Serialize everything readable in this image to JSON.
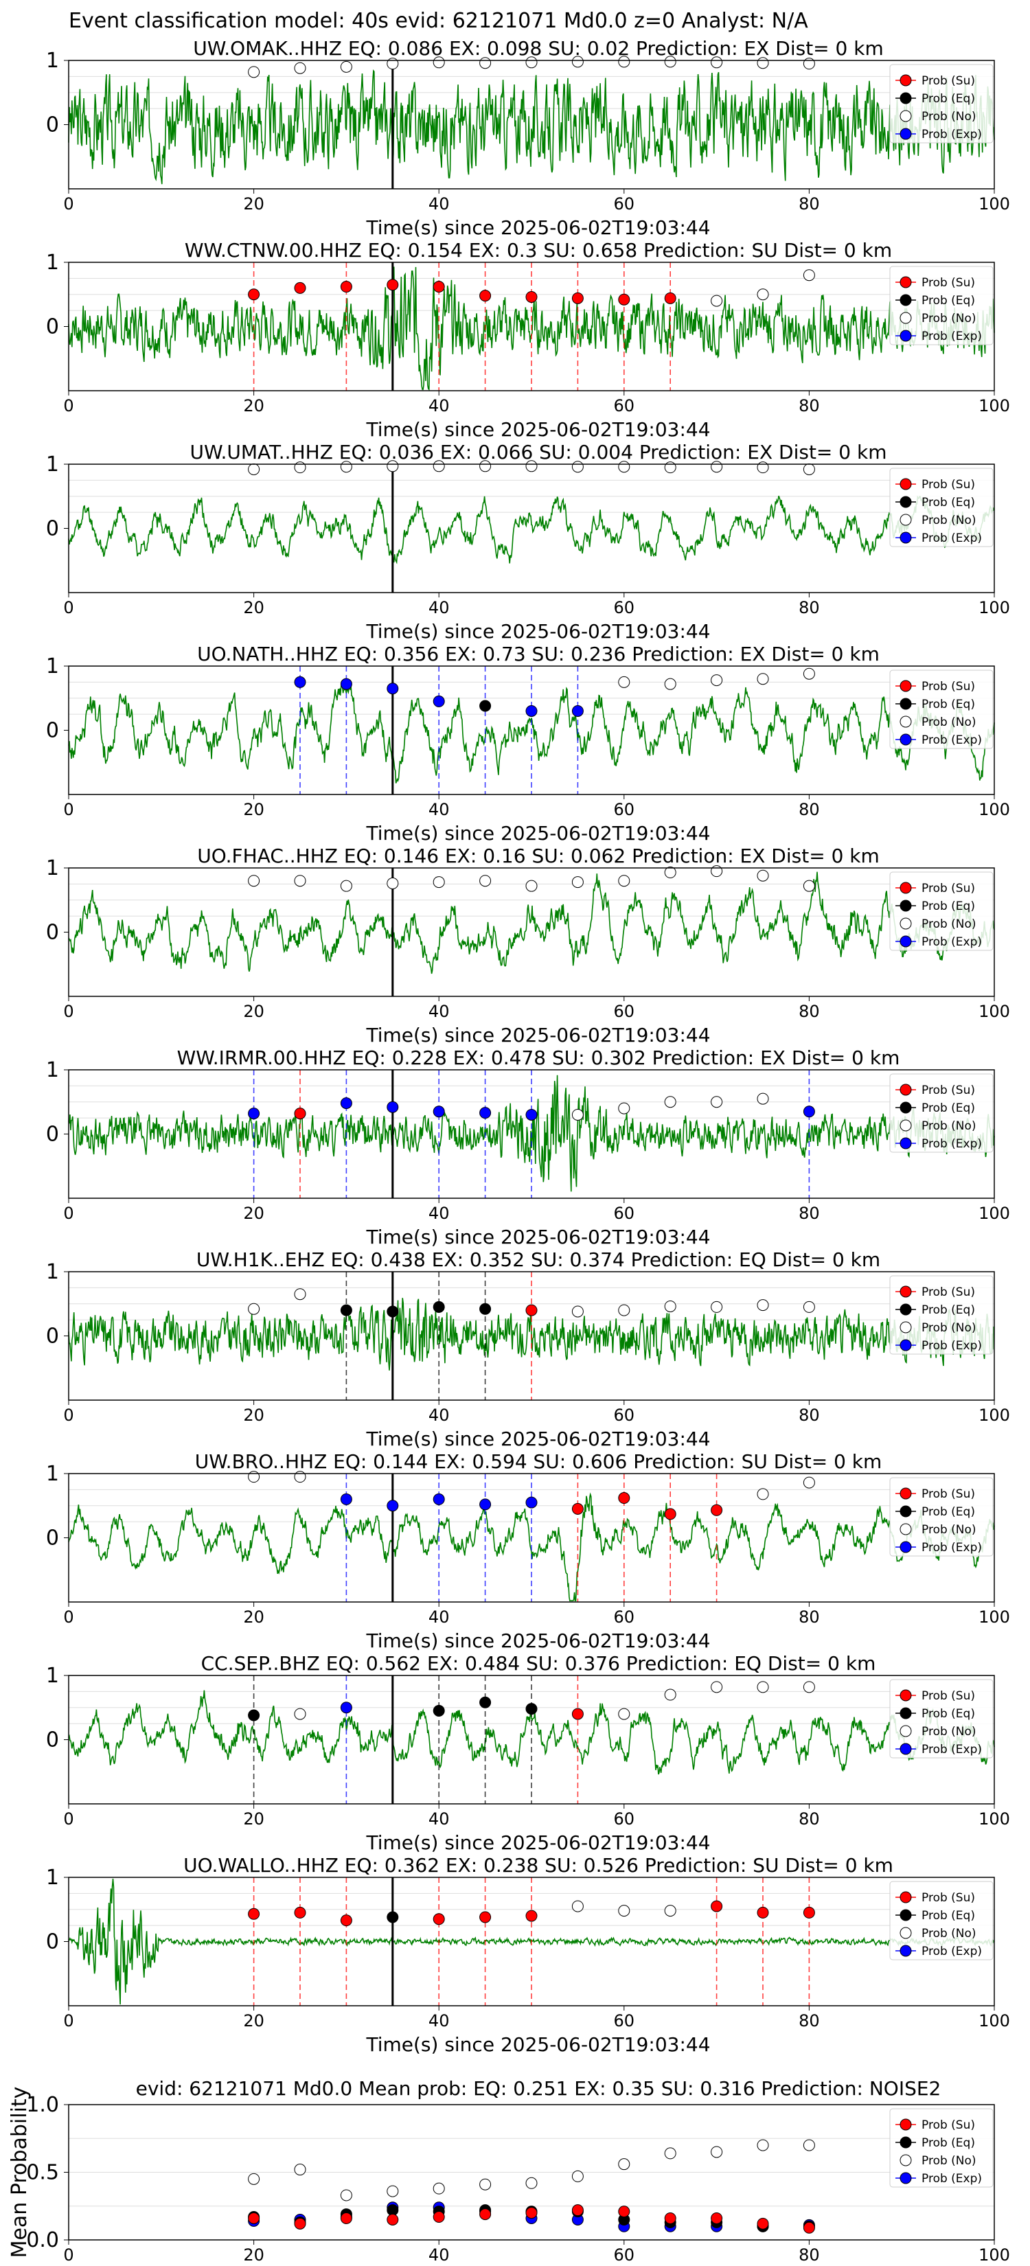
{
  "figure": {
    "suptitle": "Event classification model: 40s evid: 62121071 Md0.0 z=0 Analyst: N/A",
    "xlabel": "Time(s) since 2025-06-02T19:03:44",
    "legend": [
      "Prob (Su)",
      "Prob (Eq)",
      "Prob (No)",
      "Prob (Exp)"
    ],
    "colors": {
      "su": "#ff0000",
      "eq": "#000000",
      "no": "#ffffff",
      "exp": "#0000ff",
      "trace": "#008000",
      "grid": "#dddddd"
    }
  },
  "chart_data": [
    {
      "type": "scatter",
      "title": "UW.OMAK..HHZ   EQ: 0.086  EX: 0.098  SU: 0.02   Prediction: EX    Dist= 0 km",
      "xlim": [
        0,
        100
      ],
      "ylim": [
        -1,
        1
      ],
      "xticks": [
        0,
        20,
        40,
        60,
        80,
        100
      ],
      "yticks": [
        0,
        1
      ],
      "pick_time": 35,
      "trace": {
        "amp": 0.55,
        "seed": 3,
        "style": "noisy",
        "burst": null
      },
      "series": [
        {
          "name": "Prob (No)",
          "x": [
            20,
            25,
            30,
            35,
            40,
            45,
            50,
            55,
            60,
            65,
            70,
            75,
            80
          ],
          "y": [
            0.82,
            0.88,
            0.9,
            0.95,
            0.97,
            0.96,
            0.97,
            0.98,
            0.98,
            0.98,
            0.97,
            0.96,
            0.95
          ]
        }
      ],
      "vlines": []
    },
    {
      "type": "scatter",
      "title": "WW.CTNW.00.HHZ   EQ: 0.154  EX: 0.3  SU: 0.658   Prediction: SU    Dist= 0 km",
      "xlim": [
        0,
        100
      ],
      "ylim": [
        -1,
        1
      ],
      "xticks": [
        0,
        20,
        40,
        60,
        80,
        100
      ],
      "yticks": [
        0,
        1
      ],
      "pick_time": 35,
      "trace": {
        "amp": 0.35,
        "seed": 7,
        "style": "noisy",
        "burst": [
          30,
          45,
          0.9
        ]
      },
      "series": [
        {
          "name": "Prob (Su)",
          "x": [
            20,
            25,
            30,
            35,
            40,
            45,
            50,
            55,
            60,
            65
          ],
          "y": [
            0.5,
            0.6,
            0.62,
            0.65,
            0.62,
            0.48,
            0.46,
            0.44,
            0.42,
            0.44
          ]
        },
        {
          "name": "Prob (No)",
          "x": [
            70,
            75,
            80
          ],
          "y": [
            0.4,
            0.5,
            0.8
          ]
        }
      ],
      "vlines": [
        {
          "x": 20,
          "c": "su"
        },
        {
          "x": 30,
          "c": "su"
        },
        {
          "x": 35,
          "c": "su"
        },
        {
          "x": 40,
          "c": "su"
        },
        {
          "x": 45,
          "c": "su"
        },
        {
          "x": 50,
          "c": "su"
        },
        {
          "x": 55,
          "c": "su"
        },
        {
          "x": 60,
          "c": "su"
        },
        {
          "x": 65,
          "c": "su"
        }
      ]
    },
    {
      "type": "scatter",
      "title": "UW.UMAT..HHZ   EQ: 0.036  EX: 0.066  SU: 0.004   Prediction: EX    Dist= 0 km",
      "xlim": [
        0,
        100
      ],
      "ylim": [
        -1,
        1
      ],
      "xticks": [
        0,
        20,
        40,
        60,
        80,
        100
      ],
      "yticks": [
        0,
        1
      ],
      "pick_time": 35,
      "trace": {
        "amp": 0.4,
        "seed": 11,
        "style": "smooth",
        "burst": null
      },
      "series": [
        {
          "name": "Prob (No)",
          "x": [
            20,
            25,
            30,
            35,
            40,
            45,
            50,
            55,
            60,
            65,
            70,
            75,
            80
          ],
          "y": [
            0.92,
            0.95,
            0.96,
            0.97,
            0.97,
            0.97,
            0.97,
            0.96,
            0.96,
            0.95,
            0.96,
            0.95,
            0.92
          ]
        }
      ],
      "vlines": []
    },
    {
      "type": "scatter",
      "title": "UO.NATH..HHZ   EQ: 0.356  EX: 0.73  SU: 0.236   Prediction: EX    Dist= 0 km",
      "xlim": [
        0,
        100
      ],
      "ylim": [
        -1,
        1
      ],
      "xticks": [
        0,
        20,
        40,
        60,
        80,
        100
      ],
      "yticks": [
        0,
        1
      ],
      "pick_time": 35,
      "trace": {
        "amp": 0.55,
        "seed": 17,
        "style": "smooth",
        "burst": null
      },
      "series": [
        {
          "name": "Prob (Exp)",
          "x": [
            25,
            30,
            35,
            40,
            50,
            55
          ],
          "y": [
            0.75,
            0.72,
            0.65,
            0.45,
            0.3,
            0.3
          ]
        },
        {
          "name": "Prob (Eq)",
          "x": [
            45
          ],
          "y": [
            0.38
          ]
        },
        {
          "name": "Prob (No)",
          "x": [
            60,
            65,
            70,
            75,
            80
          ],
          "y": [
            0.75,
            0.72,
            0.78,
            0.8,
            0.88
          ]
        }
      ],
      "vlines": [
        {
          "x": 25,
          "c": "exp"
        },
        {
          "x": 30,
          "c": "exp"
        },
        {
          "x": 35,
          "c": "exp"
        },
        {
          "x": 40,
          "c": "exp"
        },
        {
          "x": 45,
          "c": "exp"
        },
        {
          "x": 50,
          "c": "exp"
        },
        {
          "x": 55,
          "c": "exp"
        }
      ]
    },
    {
      "type": "scatter",
      "title": "UO.FHAC..HHZ   EQ: 0.146  EX: 0.16  SU: 0.062   Prediction: EX    Dist= 0 km",
      "xlim": [
        0,
        100
      ],
      "ylim": [
        -1,
        1
      ],
      "xticks": [
        0,
        20,
        40,
        60,
        80,
        100
      ],
      "yticks": [
        0,
        1
      ],
      "pick_time": 35,
      "trace": {
        "amp": 0.55,
        "seed": 23,
        "style": "smooth",
        "burst": null
      },
      "series": [
        {
          "name": "Prob (No)",
          "x": [
            20,
            25,
            30,
            35,
            40,
            45,
            50,
            55,
            60,
            65,
            70,
            75,
            80
          ],
          "y": [
            0.8,
            0.8,
            0.72,
            0.76,
            0.78,
            0.8,
            0.72,
            0.78,
            0.8,
            0.93,
            0.95,
            0.88,
            0.72
          ]
        }
      ],
      "vlines": []
    },
    {
      "type": "scatter",
      "title": "WW.IRMR.00.HHZ   EQ: 0.228  EX: 0.478  SU: 0.302   Prediction: EX    Dist= 0 km",
      "xlim": [
        0,
        100
      ],
      "ylim": [
        -1,
        1
      ],
      "xticks": [
        0,
        20,
        40,
        60,
        80,
        100
      ],
      "yticks": [
        0,
        1
      ],
      "pick_time": 35,
      "trace": {
        "amp": 0.25,
        "seed": 29,
        "style": "noisy",
        "burst": [
          45,
          60,
          0.8
        ]
      },
      "series": [
        {
          "name": "Prob (Exp)",
          "x": [
            20,
            30,
            35,
            40,
            45,
            50,
            80
          ],
          "y": [
            0.32,
            0.48,
            0.42,
            0.35,
            0.33,
            0.3,
            0.35
          ]
        },
        {
          "name": "Prob (Su)",
          "x": [
            25
          ],
          "y": [
            0.32
          ]
        },
        {
          "name": "Prob (No)",
          "x": [
            55,
            60,
            65,
            70,
            75
          ],
          "y": [
            0.3,
            0.4,
            0.5,
            0.5,
            0.55
          ]
        }
      ],
      "vlines": [
        {
          "x": 20,
          "c": "exp"
        },
        {
          "x": 25,
          "c": "su"
        },
        {
          "x": 30,
          "c": "exp"
        },
        {
          "x": 35,
          "c": "exp"
        },
        {
          "x": 40,
          "c": "exp"
        },
        {
          "x": 45,
          "c": "exp"
        },
        {
          "x": 50,
          "c": "exp"
        },
        {
          "x": 80,
          "c": "exp"
        }
      ]
    },
    {
      "type": "scatter",
      "title": "UW.H1K..EHZ   EQ: 0.438  EX: 0.352  SU: 0.374   Prediction: EQ    Dist= 0 km",
      "xlim": [
        0,
        100
      ],
      "ylim": [
        -1,
        1
      ],
      "xticks": [
        0,
        20,
        40,
        60,
        80,
        100
      ],
      "yticks": [
        0,
        1
      ],
      "pick_time": 35,
      "trace": {
        "amp": 0.3,
        "seed": 31,
        "style": "noisy",
        "burst": [
          30,
          45,
          0.6
        ]
      },
      "series": [
        {
          "name": "Prob (No)",
          "x": [
            20,
            25,
            55,
            60,
            65,
            70,
            75,
            80
          ],
          "y": [
            0.42,
            0.65,
            0.38,
            0.4,
            0.46,
            0.45,
            0.48,
            0.45
          ]
        },
        {
          "name": "Prob (Eq)",
          "x": [
            30,
            35,
            40,
            45
          ],
          "y": [
            0.4,
            0.38,
            0.45,
            0.42
          ]
        },
        {
          "name": "Prob (Su)",
          "x": [
            50
          ],
          "y": [
            0.4
          ]
        }
      ],
      "vlines": [
        {
          "x": 30,
          "c": "eq"
        },
        {
          "x": 35,
          "c": "eq"
        },
        {
          "x": 40,
          "c": "eq"
        },
        {
          "x": 45,
          "c": "eq"
        },
        {
          "x": 50,
          "c": "su"
        }
      ]
    },
    {
      "type": "scatter",
      "title": "UW.BRO..HHZ   EQ: 0.144  EX: 0.594  SU: 0.606   Prediction: SU    Dist= 0 km",
      "xlim": [
        0,
        100
      ],
      "ylim": [
        -1,
        1
      ],
      "xticks": [
        0,
        20,
        40,
        60,
        80,
        100
      ],
      "yticks": [
        0,
        1
      ],
      "pick_time": 35,
      "trace": {
        "amp": 0.4,
        "seed": 37,
        "style": "smooth",
        "burst": [
          50,
          60,
          0.85
        ]
      },
      "series": [
        {
          "name": "Prob (No)",
          "x": [
            20,
            25,
            75,
            80
          ],
          "y": [
            0.95,
            0.95,
            0.68,
            0.86
          ]
        },
        {
          "name": "Prob (Exp)",
          "x": [
            30,
            35,
            40,
            45,
            50
          ],
          "y": [
            0.6,
            0.5,
            0.6,
            0.52,
            0.55
          ]
        },
        {
          "name": "Prob (Su)",
          "x": [
            55,
            60,
            65,
            70
          ],
          "y": [
            0.45,
            0.62,
            0.37,
            0.43
          ]
        }
      ],
      "vlines": [
        {
          "x": 30,
          "c": "exp"
        },
        {
          "x": 35,
          "c": "exp"
        },
        {
          "x": 40,
          "c": "exp"
        },
        {
          "x": 45,
          "c": "exp"
        },
        {
          "x": 50,
          "c": "exp"
        },
        {
          "x": 55,
          "c": "su"
        },
        {
          "x": 60,
          "c": "su"
        },
        {
          "x": 65,
          "c": "su"
        },
        {
          "x": 70,
          "c": "su"
        }
      ]
    },
    {
      "type": "scatter",
      "title": "CC.SEP..BHZ   EQ: 0.562  EX: 0.484  SU: 0.376   Prediction: EQ    Dist= 0 km",
      "xlim": [
        0,
        100
      ],
      "ylim": [
        -1,
        1
      ],
      "xticks": [
        0,
        20,
        40,
        60,
        80,
        100
      ],
      "yticks": [
        0,
        1
      ],
      "pick_time": 35,
      "trace": {
        "amp": 0.45,
        "seed": 41,
        "style": "smooth",
        "burst": null
      },
      "series": [
        {
          "name": "Prob (Eq)",
          "x": [
            20,
            40,
            45,
            50
          ],
          "y": [
            0.38,
            0.45,
            0.58,
            0.48
          ]
        },
        {
          "name": "Prob (No)",
          "x": [
            25,
            60,
            65,
            70,
            75,
            80
          ],
          "y": [
            0.4,
            0.4,
            0.7,
            0.82,
            0.82,
            0.82
          ]
        },
        {
          "name": "Prob (Exp)",
          "x": [
            30
          ],
          "y": [
            0.5
          ]
        },
        {
          "name": "Prob (Su)",
          "x": [
            55
          ],
          "y": [
            0.4
          ]
        }
      ],
      "vlines": [
        {
          "x": 20,
          "c": "eq"
        },
        {
          "x": 30,
          "c": "exp"
        },
        {
          "x": 35,
          "c": "eq"
        },
        {
          "x": 40,
          "c": "eq"
        },
        {
          "x": 45,
          "c": "eq"
        },
        {
          "x": 50,
          "c": "eq"
        },
        {
          "x": 55,
          "c": "su"
        }
      ]
    },
    {
      "type": "scatter",
      "title": "UO.WALLO..HHZ   EQ: 0.362  EX: 0.238  SU: 0.526   Prediction: SU    Dist= 0 km",
      "xlim": [
        0,
        100
      ],
      "ylim": [
        -1,
        1
      ],
      "xticks": [
        0,
        20,
        40,
        60,
        80,
        100
      ],
      "yticks": [
        0,
        1
      ],
      "pick_time": 35,
      "trace": {
        "amp": 0.04,
        "seed": 43,
        "style": "noisy",
        "burst": [
          1,
          10,
          0.8
        ]
      },
      "series": [
        {
          "name": "Prob (Su)",
          "x": [
            20,
            25,
            30,
            40,
            45,
            50,
            70,
            75,
            80
          ],
          "y": [
            0.43,
            0.45,
            0.33,
            0.35,
            0.38,
            0.4,
            0.55,
            0.45,
            0.45
          ]
        },
        {
          "name": "Prob (Eq)",
          "x": [
            35
          ],
          "y": [
            0.38
          ]
        },
        {
          "name": "Prob (No)",
          "x": [
            55,
            60,
            65
          ],
          "y": [
            0.55,
            0.48,
            0.48
          ]
        }
      ],
      "vlines": [
        {
          "x": 20,
          "c": "su"
        },
        {
          "x": 25,
          "c": "su"
        },
        {
          "x": 30,
          "c": "su"
        },
        {
          "x": 35,
          "c": "su"
        },
        {
          "x": 40,
          "c": "su"
        },
        {
          "x": 45,
          "c": "su"
        },
        {
          "x": 50,
          "c": "su"
        },
        {
          "x": 70,
          "c": "su"
        },
        {
          "x": 75,
          "c": "su"
        },
        {
          "x": 80,
          "c": "su"
        }
      ]
    }
  ],
  "mean_chart": {
    "type": "scatter",
    "title": "evid: 62121071   Md0.0   Mean prob:   EQ: 0.251  EX: 0.35  SU: 0.316   Prediction: NOISE2",
    "ylabel": "Mean Probability",
    "xlim": [
      0,
      100
    ],
    "ylim": [
      0,
      1
    ],
    "xticks": [
      0,
      20,
      40,
      60,
      80,
      100
    ],
    "yticks": [
      0.0,
      0.5,
      1.0
    ],
    "x": [
      20,
      25,
      30,
      35,
      40,
      45,
      50,
      55,
      60,
      65,
      70,
      75,
      80
    ],
    "series": [
      {
        "name": "Prob (No)",
        "values": [
          0.45,
          0.52,
          0.33,
          0.36,
          0.38,
          0.41,
          0.42,
          0.47,
          0.56,
          0.64,
          0.65,
          0.7,
          0.7
        ]
      },
      {
        "name": "Prob (Exp)",
        "values": [
          0.14,
          0.15,
          0.17,
          0.24,
          0.24,
          0.21,
          0.16,
          0.15,
          0.1,
          0.1,
          0.1,
          0.1,
          0.11
        ]
      },
      {
        "name": "Prob (Eq)",
        "values": [
          0.17,
          0.13,
          0.19,
          0.22,
          0.21,
          0.22,
          0.21,
          0.21,
          0.15,
          0.13,
          0.13,
          0.1,
          0.1
        ]
      },
      {
        "name": "Prob (Su)",
        "values": [
          0.16,
          0.12,
          0.16,
          0.15,
          0.17,
          0.19,
          0.2,
          0.22,
          0.21,
          0.16,
          0.16,
          0.12,
          0.09
        ]
      }
    ]
  }
}
